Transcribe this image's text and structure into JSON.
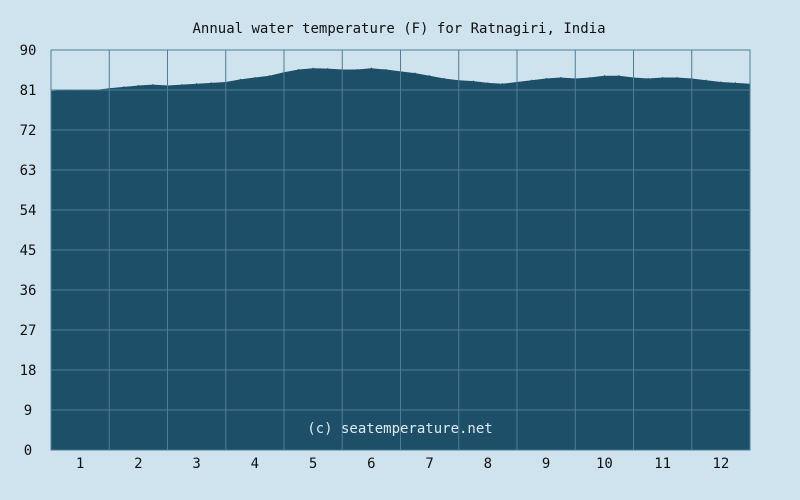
{
  "chart_data": {
    "type": "area",
    "title": "Annual water temperature (F) for Ratnagiri, India",
    "xlabel": "",
    "ylabel": "",
    "ylim": [
      0,
      90
    ],
    "xlim": [
      0.5,
      12.5
    ],
    "yticks": [
      0,
      9,
      18,
      27,
      36,
      45,
      54,
      63,
      72,
      81,
      90
    ],
    "xticks": [
      1,
      2,
      3,
      4,
      5,
      6,
      7,
      8,
      9,
      10,
      11,
      12
    ],
    "grid": true,
    "legend": "none",
    "watermark": "(c) seatemperature.net",
    "colors": {
      "background": "#cfe3ee",
      "plot_fill": "#1e4f69",
      "grid": "#4f7d94",
      "text": "#111111",
      "watermark": "#dfe9f0"
    },
    "series": [
      {
        "x": [
          0.5,
          0.75,
          1.0,
          1.25,
          1.5,
          1.75,
          2.0,
          2.25,
          2.5,
          2.75,
          3.0,
          3.25,
          3.5,
          3.75,
          4.0,
          4.25,
          4.5,
          4.75,
          5.0,
          5.25,
          5.5,
          5.75,
          6.0,
          6.25,
          6.5,
          6.75,
          7.0,
          7.25,
          7.5,
          7.75,
          8.0,
          8.25,
          8.5,
          8.75,
          9.0,
          9.25,
          9.5,
          9.75,
          10.0,
          10.25,
          10.5,
          10.75,
          11.0,
          11.25,
          11.5,
          11.75,
          12.0,
          12.25,
          12.5
        ],
        "values": [
          80.8,
          81.0,
          81.0,
          81.0,
          81.4,
          81.7,
          82.0,
          82.2,
          82.0,
          82.2,
          82.4,
          82.6,
          82.8,
          83.4,
          83.8,
          84.2,
          85.0,
          85.6,
          85.9,
          85.8,
          85.6,
          85.6,
          85.9,
          85.6,
          85.2,
          84.8,
          84.2,
          83.6,
          83.2,
          83.0,
          82.6,
          82.4,
          82.8,
          83.2,
          83.6,
          83.8,
          83.6,
          83.8,
          84.2,
          84.2,
          83.8,
          83.6,
          83.8,
          83.8,
          83.6,
          83.2,
          82.8,
          82.6,
          82.4
        ]
      }
    ]
  }
}
